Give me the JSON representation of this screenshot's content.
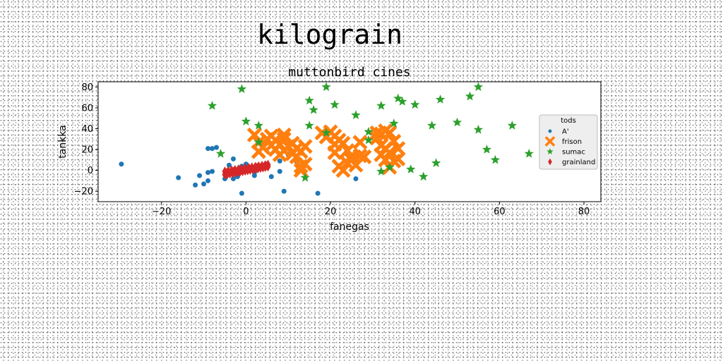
{
  "chart_data": {
    "type": "scatter",
    "suptitle": "kilograin",
    "title": "muttonbird cines",
    "xlabel": "fanegas",
    "ylabel": "tankka",
    "xlim": [
      -35,
      84
    ],
    "ylim": [
      -30,
      85
    ],
    "xticks": [
      -20,
      0,
      20,
      40,
      60,
      80
    ],
    "yticks": [
      -20,
      0,
      20,
      40,
      60,
      80
    ],
    "xtick_labels": [
      "−20",
      "0",
      "20",
      "40",
      "60",
      "80"
    ],
    "ytick_labels": [
      "−20",
      "0",
      "20",
      "40",
      "60",
      "80"
    ],
    "grid": false,
    "legend": {
      "title": "tods",
      "placement": "right"
    },
    "series": [
      {
        "name": "A'",
        "color": "#1f77b4",
        "marker": "circle",
        "points": [
          [
            -29.5,
            6
          ],
          [
            -16,
            -7
          ],
          [
            -12,
            -14
          ],
          [
            -11,
            -5
          ],
          [
            -10,
            -13
          ],
          [
            -9,
            -10
          ],
          [
            -9,
            -2
          ],
          [
            -9,
            21
          ],
          [
            -8,
            21
          ],
          [
            -8,
            -1
          ],
          [
            -7,
            22
          ],
          [
            -5,
            -8
          ],
          [
            -3,
            -8
          ],
          [
            -4,
            5
          ],
          [
            -2,
            -6
          ],
          [
            -3,
            11
          ],
          [
            -1,
            4
          ],
          [
            -1,
            -22
          ],
          [
            1,
            1
          ],
          [
            2,
            -2
          ],
          [
            3,
            3
          ],
          [
            4,
            2
          ],
          [
            5,
            6
          ],
          [
            6,
            -6
          ],
          [
            8,
            9
          ],
          [
            8,
            -1
          ],
          [
            9,
            -20
          ],
          [
            10,
            15
          ],
          [
            12,
            8
          ],
          [
            17,
            -22
          ],
          [
            26,
            -8
          ],
          [
            2,
            -5
          ],
          [
            0,
            6
          ]
        ]
      },
      {
        "name": "frison",
        "color": "#ff7f0e",
        "marker": "x",
        "points": [
          [
            2,
            34
          ],
          [
            3,
            27
          ],
          [
            5,
            30
          ],
          [
            3,
            18
          ],
          [
            4,
            22
          ],
          [
            6,
            24
          ],
          [
            6,
            33
          ],
          [
            7,
            20
          ],
          [
            7,
            29
          ],
          [
            8,
            15
          ],
          [
            8,
            25
          ],
          [
            9,
            19
          ],
          [
            9,
            30
          ],
          [
            10,
            23
          ],
          [
            9,
            34
          ],
          [
            11,
            26
          ],
          [
            11,
            16
          ],
          [
            12,
            21
          ],
          [
            12,
            13
          ],
          [
            13,
            18
          ],
          [
            13,
            4
          ],
          [
            13,
            0
          ],
          [
            14,
            6
          ],
          [
            14,
            23
          ],
          [
            18,
            36
          ],
          [
            19,
            32
          ],
          [
            20,
            37
          ],
          [
            21,
            33
          ],
          [
            21,
            25
          ],
          [
            21,
            17
          ],
          [
            22,
            29
          ],
          [
            23,
            26
          ],
          [
            22,
            4
          ],
          [
            23,
            0
          ],
          [
            24,
            7
          ],
          [
            25,
            14
          ],
          [
            25,
            10
          ],
          [
            24,
            19
          ],
          [
            26,
            5
          ],
          [
            27,
            14
          ],
          [
            28,
            13
          ],
          [
            27,
            27
          ],
          [
            31,
            36
          ],
          [
            31,
            31
          ],
          [
            32,
            35
          ],
          [
            33,
            38
          ],
          [
            32,
            24
          ],
          [
            33,
            21
          ],
          [
            32,
            15
          ],
          [
            33,
            10
          ],
          [
            34,
            17
          ],
          [
            34,
            36
          ],
          [
            35,
            28
          ],
          [
            34,
            3
          ],
          [
            36,
            11
          ],
          [
            36,
            21
          ],
          [
            35,
            9
          ]
        ]
      },
      {
        "name": "sumac",
        "color": "#2ca02c",
        "marker": "star",
        "points": [
          [
            -8,
            62
          ],
          [
            -1,
            78
          ],
          [
            0,
            47
          ],
          [
            3,
            43
          ],
          [
            -6,
            16
          ],
          [
            3,
            27
          ],
          [
            14,
            -7
          ],
          [
            15,
            67
          ],
          [
            15,
            43
          ],
          [
            16,
            58
          ],
          [
            19,
            36
          ],
          [
            19,
            80
          ],
          [
            21,
            63
          ],
          [
            26,
            53
          ],
          [
            29,
            37
          ],
          [
            29,
            29
          ],
          [
            32,
            62
          ],
          [
            32,
            -1
          ],
          [
            34,
            3
          ],
          [
            35,
            45
          ],
          [
            36,
            69
          ],
          [
            37,
            66
          ],
          [
            39,
            1
          ],
          [
            40,
            63
          ],
          [
            42,
            -6
          ],
          [
            44,
            43
          ],
          [
            45,
            7
          ],
          [
            46,
            68
          ],
          [
            50,
            46
          ],
          [
            53,
            71
          ],
          [
            55,
            80
          ],
          [
            55,
            39
          ],
          [
            57,
            20
          ],
          [
            59,
            10
          ],
          [
            63,
            43
          ],
          [
            67,
            16
          ]
        ]
      },
      {
        "name": "grainland",
        "color": "#d62728",
        "marker": "thin_diamond",
        "points": [
          [
            -5,
            -4
          ],
          [
            -4.4,
            -3.6
          ],
          [
            -3.8,
            -3.1
          ],
          [
            -3.2,
            -2.7
          ],
          [
            -2.6,
            -2.2
          ],
          [
            -2,
            -1.8
          ],
          [
            -1.4,
            -1.3
          ],
          [
            -0.8,
            -0.9
          ],
          [
            -0.2,
            -0.4
          ],
          [
            0.4,
            0
          ],
          [
            1,
            0.5
          ],
          [
            1.6,
            0.9
          ],
          [
            2.2,
            1.4
          ],
          [
            2.8,
            1.8
          ],
          [
            3.4,
            2.3
          ],
          [
            4,
            2.7
          ],
          [
            4.6,
            3.2
          ],
          [
            5.2,
            3.6
          ],
          [
            -5,
            -1
          ],
          [
            -4.2,
            -0.5
          ],
          [
            -3.4,
            0
          ],
          [
            -2.6,
            0.5
          ],
          [
            -1.8,
            1
          ],
          [
            -1,
            1.5
          ],
          [
            -0.2,
            2
          ],
          [
            0.6,
            2.5
          ],
          [
            1.4,
            3
          ],
          [
            2.2,
            3.5
          ],
          [
            3,
            4
          ],
          [
            3.8,
            4.5
          ],
          [
            4.6,
            5
          ],
          [
            5.2,
            5.5
          ],
          [
            -4.6,
            -2.5
          ],
          [
            -3,
            -1.2
          ],
          [
            -1.2,
            0.2
          ],
          [
            0.8,
            1.5
          ],
          [
            2.6,
            2.8
          ],
          [
            4.4,
            4.2
          ]
        ]
      }
    ]
  }
}
